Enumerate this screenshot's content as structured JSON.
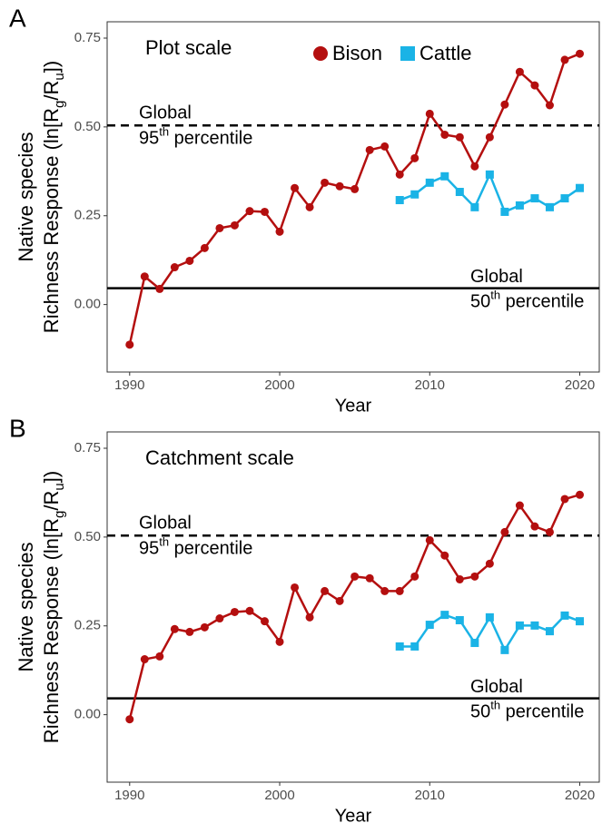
{
  "chart_data": [
    {
      "type": "line",
      "panel_label": "A",
      "subtitle": "Plot scale",
      "xlabel": "Year",
      "ylabel": [
        "Native species",
        "Richness Response (ln[R",
        "g",
        "/R",
        "u",
        "])"
      ],
      "xlim": [
        1988.5,
        2021.3
      ],
      "xticks": [
        1990,
        2000,
        2010,
        2020
      ],
      "ylim": [
        -0.19,
        0.796
      ],
      "yticks": [
        {
          "value": 0,
          "label": "0.00"
        },
        0.25,
        {
          "value": 0.5,
          "label": "0.50"
        },
        0.75
      ],
      "legend": "top",
      "reference_lines": [
        {
          "value": 0.504,
          "style": "dashed",
          "label_side": "left",
          "label": [
            "Global",
            "95",
            "th",
            " percentile"
          ]
        },
        {
          "value": 0.046,
          "style": "solid",
          "label_side": "right",
          "label": [
            "Global",
            "50",
            "th",
            " percentile"
          ]
        }
      ],
      "series": [
        {
          "name": "Bison",
          "color": "#b40f0f",
          "marker": "circle",
          "x": [
            1990,
            1991,
            1992,
            1993,
            1994,
            1995,
            1996,
            1997,
            1998,
            1999,
            2000,
            2001,
            2002,
            2003,
            2004,
            2005,
            2006,
            2007,
            2008,
            2009,
            2010,
            2011,
            2012,
            2013,
            2014,
            2015,
            2016,
            2017,
            2018,
            2019,
            2020
          ],
          "values": [
            -0.113,
            0.079,
            0.044,
            0.105,
            0.123,
            0.159,
            0.215,
            0.223,
            0.263,
            0.261,
            0.205,
            0.328,
            0.274,
            0.343,
            0.333,
            0.325,
            0.435,
            0.445,
            0.366,
            0.412,
            0.537,
            0.478,
            0.471,
            0.389,
            0.471,
            0.563,
            0.655,
            0.617,
            0.561,
            0.689,
            0.706
          ]
        },
        {
          "name": "Cattle",
          "color": "#1ab3e6",
          "marker": "square",
          "x": [
            2008,
            2009,
            2010,
            2011,
            2012,
            2013,
            2014,
            2015,
            2016,
            2017,
            2018,
            2019,
            2020
          ],
          "values": [
            0.294,
            0.31,
            0.343,
            0.361,
            0.317,
            0.274,
            0.366,
            0.261,
            0.279,
            0.299,
            0.274,
            0.299,
            0.328
          ]
        }
      ]
    },
    {
      "type": "line",
      "panel_label": "B",
      "subtitle": "Catchment scale",
      "xlabel": "Year",
      "ylabel": [
        "Native species",
        "Richness Response (ln[R",
        "g",
        "/R",
        "u",
        "])"
      ],
      "xlim": [
        1988.5,
        2021.3
      ],
      "xticks": [
        1990,
        2000,
        2010,
        2020
      ],
      "ylim": [
        -0.19,
        0.796
      ],
      "yticks": [
        {
          "value": 0,
          "label": "0.00"
        },
        0.25,
        {
          "value": 0.5,
          "label": "0.50"
        },
        0.75
      ],
      "reference_lines": [
        {
          "value": 0.504,
          "style": "dashed",
          "label_side": "left",
          "label": [
            "Global",
            "95",
            "th",
            " percentile"
          ]
        },
        {
          "value": 0.046,
          "style": "solid",
          "label_side": "right",
          "label": [
            "Global",
            "50",
            "th",
            " percentile"
          ]
        }
      ],
      "series": [
        {
          "name": "Bison",
          "color": "#b40f0f",
          "marker": "circle",
          "x": [
            1990,
            1991,
            1992,
            1993,
            1994,
            1995,
            1996,
            1997,
            1998,
            1999,
            2000,
            2001,
            2002,
            2003,
            2004,
            2005,
            2006,
            2007,
            2008,
            2009,
            2010,
            2011,
            2012,
            2013,
            2014,
            2015,
            2016,
            2017,
            2018,
            2019,
            2020
          ],
          "values": [
            -0.013,
            0.156,
            0.164,
            0.241,
            0.233,
            0.246,
            0.271,
            0.289,
            0.292,
            0.263,
            0.205,
            0.358,
            0.274,
            0.348,
            0.32,
            0.389,
            0.384,
            0.348,
            0.348,
            0.389,
            0.491,
            0.448,
            0.381,
            0.389,
            0.425,
            0.514,
            0.589,
            0.53,
            0.514,
            0.607,
            0.619
          ]
        },
        {
          "name": "Cattle",
          "color": "#1ab3e6",
          "marker": "square",
          "x": [
            2008,
            2009,
            2010,
            2011,
            2012,
            2013,
            2014,
            2015,
            2016,
            2017,
            2018,
            2019,
            2020
          ],
          "values": [
            0.192,
            0.192,
            0.253,
            0.281,
            0.266,
            0.202,
            0.274,
            0.182,
            0.251,
            0.251,
            0.235,
            0.279,
            0.263
          ]
        }
      ]
    }
  ]
}
